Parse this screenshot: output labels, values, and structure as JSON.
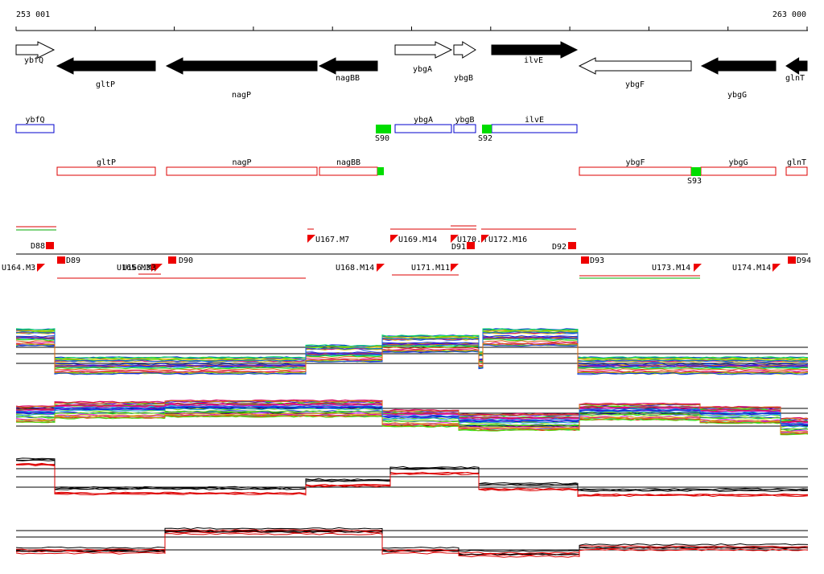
{
  "axis": {
    "start": "253 001",
    "end": "263 000"
  },
  "genes": [
    {
      "label": "ybfQ"
    },
    {
      "label": "ybgA"
    },
    {
      "label": "ybgB"
    },
    {
      "label": "ilvE"
    },
    {
      "label": "gltP"
    },
    {
      "label": "nagP"
    },
    {
      "label": "nagBB"
    },
    {
      "label": "ybgF"
    },
    {
      "label": "ybgG"
    },
    {
      "label": "glnT"
    }
  ],
  "annotations": [
    {
      "label": "ybfQ"
    },
    {
      "label": "ybgA"
    },
    {
      "label": "ybgB"
    },
    {
      "label": "ilvE"
    },
    {
      "label": "gltP"
    },
    {
      "label": "nagP"
    },
    {
      "label": "nagBB"
    },
    {
      "label": "ybgF"
    },
    {
      "label": "ybgG"
    },
    {
      "label": "glnT"
    }
  ],
  "sites": [
    "S90",
    "S92",
    "S93"
  ],
  "segments": [
    "D88",
    "D89",
    "U164.M3",
    "U165.M3",
    "U166.M3",
    "D90",
    "U167.M7",
    "U168.M14",
    "U169.M14",
    "U170.M",
    "D91",
    "U171.M11",
    "U172.M16",
    "D92",
    "D93",
    "U173.M14",
    "U174.M14",
    "D94"
  ]
}
